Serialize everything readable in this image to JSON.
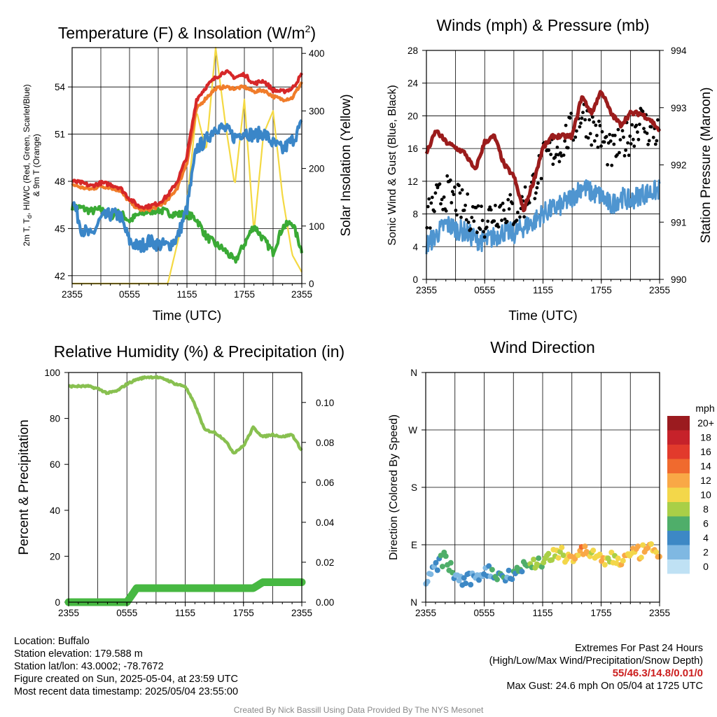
{
  "chart_data": [
    {
      "type": "line",
      "title": "Temperature (F) & Insolation (W/m",
      "title_sup": "2",
      "title_close": ")",
      "xlabel": "Time (UTC)",
      "ylabel": "2m T, T",
      "ylabel_sub": "d",
      "ylabel_rest": ", HI/WC (Red, Green, Scarlet/Blue)",
      "ylabel_line2": "& 9m T (Orange)",
      "ylabel_right": "Solar Insolation (Yellow)",
      "x_ticks": [
        "2355",
        "0555",
        "1155",
        "1755",
        "2355"
      ],
      "ylim": [
        41.5,
        56.5
      ],
      "y_ticks": [
        42,
        45,
        48,
        51,
        54
      ],
      "ylim_right": [
        0,
        410
      ],
      "y_ticks_right": [
        0,
        100,
        200,
        300,
        400
      ],
      "x_hours": [
        0,
        1,
        2,
        3,
        4,
        5,
        6,
        7,
        8,
        9,
        10,
        11,
        12,
        13,
        14,
        15,
        16,
        17,
        18,
        19,
        20,
        21,
        22,
        23,
        24
      ],
      "series": [
        {
          "color": "#d62728",
          "axis": "left",
          "values": [
            48.0,
            47.9,
            47.7,
            47.9,
            47.8,
            47.6,
            46.9,
            46.4,
            46.4,
            46.6,
            47.1,
            48.0,
            49.6,
            53.2,
            54.0,
            54.6,
            55.0,
            54.6,
            54.8,
            54.2,
            54.4,
            53.8,
            53.7,
            53.9,
            54.8
          ]
        },
        {
          "color": "#f07c2a",
          "axis": "left",
          "values": [
            47.8,
            47.6,
            47.5,
            47.7,
            47.6,
            47.4,
            46.7,
            46.2,
            46.2,
            46.4,
            46.8,
            47.6,
            49.2,
            52.6,
            53.3,
            53.9,
            54.0,
            53.9,
            54.0,
            53.7,
            53.8,
            53.4,
            53.2,
            53.3,
            54.3
          ]
        },
        {
          "color": "#3a86c8",
          "axis": "left",
          "values": [
            46.9,
            45.0,
            44.5,
            45.6,
            45.9,
            45.8,
            44.2,
            43.8,
            44.2,
            44.0,
            43.9,
            44.4,
            46.3,
            50.1,
            50.6,
            51.5,
            51.3,
            50.8,
            51.2,
            50.9,
            51.1,
            50.4,
            50.0,
            50.6,
            51.6
          ]
        },
        {
          "color": "#3aaa35",
          "axis": "left",
          "values": [
            46.4,
            46.3,
            46.1,
            46.2,
            45.8,
            46.0,
            45.5,
            45.9,
            46.1,
            46.2,
            46.0,
            45.9,
            45.9,
            45.6,
            44.5,
            44.0,
            43.6,
            42.9,
            44.0,
            45.2,
            44.3,
            43.5,
            45.1,
            45.4,
            43.6
          ]
        },
        {
          "color": "#f4d943",
          "axis": "right",
          "values": [
            0,
            0,
            0,
            0,
            0,
            0,
            0,
            0,
            0,
            0,
            0,
            70,
            140,
            300,
            230,
            410,
            280,
            170,
            320,
            90,
            260,
            300,
            150,
            50,
            20
          ]
        }
      ]
    },
    {
      "type": "scatter",
      "title": "Winds (mph) & Pressure (mb)",
      "xlabel": "Time (UTC)",
      "ylabel": "Sonic Wind & Gust (Blue, Black)",
      "ylabel_right": "Station Pressure (Maroon)",
      "x_ticks": [
        "2355",
        "0555",
        "1155",
        "1755",
        "2355"
      ],
      "ylim": [
        0,
        28
      ],
      "y_ticks": [
        0,
        4,
        8,
        12,
        16,
        20,
        24,
        28
      ],
      "ylim_right": [
        990,
        994
      ],
      "y_ticks_right": [
        990,
        991,
        992,
        993,
        994
      ],
      "x_hours": [
        0,
        1,
        2,
        3,
        4,
        5,
        6,
        7,
        8,
        9,
        10,
        11,
        12,
        13,
        14,
        15,
        16,
        17,
        18,
        19,
        20,
        21,
        22,
        23,
        24
      ],
      "series": [
        {
          "name": "Sonic Wind",
          "color": "#4f95d0",
          "axis": "left",
          "kind": "line",
          "values": [
            4.2,
            5.4,
            6.8,
            6.2,
            5.8,
            5.0,
            4.6,
            5.2,
            5.9,
            5.6,
            6.4,
            7.0,
            8.1,
            8.6,
            9.1,
            10.0,
            11.4,
            10.6,
            10.2,
            9.0,
            10.1,
            9.6,
            10.4,
            10.6,
            11.0
          ]
        },
        {
          "name": "Gust",
          "color": "#000000",
          "axis": "left",
          "kind": "dots",
          "values": [
            7.2,
            9.5,
            10.6,
            9.8,
            8.4,
            7.9,
            7.3,
            8.3,
            8.8,
            8.2,
            9.4,
            11.5,
            14.5,
            15.6,
            16.6,
            18.3,
            20.4,
            18.6,
            17.2,
            15.3,
            16.5,
            17.6,
            19.5,
            18.1,
            17.9
          ]
        },
        {
          "name": "Station Pressure",
          "color": "#9b1c1c",
          "axis": "right",
          "kind": "line",
          "values": [
            992.2,
            992.6,
            992.4,
            992.3,
            992.2,
            991.9,
            992.4,
            992.5,
            992.0,
            991.8,
            991.2,
            991.7,
            992.3,
            992.5,
            992.5,
            992.5,
            993.2,
            992.9,
            993.3,
            992.9,
            992.7,
            992.9,
            992.9,
            992.8,
            992.6
          ]
        }
      ]
    },
    {
      "type": "line",
      "title": "Relative Humidity (%) & Precipitation (in)",
      "ylabel": "Percent & Precipitation",
      "x_ticks": [
        "2355",
        "0555",
        "1155",
        "1755",
        "2355"
      ],
      "ylim": [
        0,
        100
      ],
      "y_ticks": [
        0,
        20,
        40,
        60,
        80,
        100
      ],
      "ylim_right": [
        0,
        0.115
      ],
      "y_ticks_right": [
        "0.00",
        "0.02",
        "0.04",
        "0.06",
        "0.08",
        "0.10"
      ],
      "x_hours": [
        0,
        1,
        2,
        3,
        4,
        5,
        6,
        7,
        8,
        9,
        10,
        11,
        12,
        13,
        14,
        15,
        16,
        17,
        18,
        19,
        20,
        21,
        22,
        23,
        24
      ],
      "series": [
        {
          "name": "Relative Humidity",
          "color": "#88c050",
          "axis": "left",
          "values": [
            94,
            94,
            94,
            93,
            91,
            92,
            95,
            97,
            98,
            98,
            97,
            95,
            94,
            86,
            75,
            74,
            71,
            65,
            68,
            76,
            72,
            73,
            72,
            73,
            66
          ]
        },
        {
          "name": "Precipitation",
          "color": "#47b842",
          "axis": "right",
          "values": [
            0,
            0,
            0,
            0,
            0,
            0,
            0,
            0.007,
            0.007,
            0.007,
            0.007,
            0.007,
            0.007,
            0.007,
            0.007,
            0.007,
            0.007,
            0.007,
            0.007,
            0.007,
            0.01,
            0.01,
            0.01,
            0.01,
            0.01
          ]
        }
      ]
    },
    {
      "type": "scatter",
      "title": "Wind Direction",
      "ylabel": "Direction (Colored By Speed)",
      "x_ticks": [
        "2355",
        "0555",
        "1155",
        "1755",
        "2355"
      ],
      "y_ticks": [
        "N",
        "E",
        "S",
        "W",
        "N"
      ],
      "ylim": [
        0,
        360
      ],
      "x_hours": [
        0,
        1,
        2,
        3,
        4,
        5,
        6,
        7,
        8,
        9,
        10,
        11,
        12,
        13,
        14,
        15,
        16,
        17,
        18,
        19,
        20,
        21,
        22,
        23,
        24
      ],
      "directions": [
        28,
        55,
        70,
        40,
        32,
        37,
        50,
        45,
        40,
        48,
        55,
        60,
        65,
        72,
        75,
        70,
        80,
        78,
        62,
        70,
        65,
        72,
        78,
        82,
        78
      ],
      "speeds": [
        3,
        4,
        8,
        5,
        4,
        5,
        4,
        6,
        5,
        6,
        7,
        8,
        9,
        10,
        11,
        12,
        14,
        11,
        13,
        9,
        11,
        12,
        13,
        12,
        12
      ],
      "legend_title": "mph",
      "legend": [
        {
          "label": "20+",
          "color": "#9b1b1f"
        },
        {
          "label": "18",
          "color": "#c6222a"
        },
        {
          "label": "16",
          "color": "#e23a2c"
        },
        {
          "label": "14",
          "color": "#f06a2e"
        },
        {
          "label": "12",
          "color": "#f9a846"
        },
        {
          "label": "10",
          "color": "#f3d74a"
        },
        {
          "label": "8",
          "color": "#a9cf47"
        },
        {
          "label": "6",
          "color": "#4fae6a"
        },
        {
          "label": "4",
          "color": "#3d88c5"
        },
        {
          "label": "2",
          "color": "#7fb8e2"
        },
        {
          "label": "0",
          "color": "#bfe1f4"
        }
      ]
    }
  ],
  "footer": {
    "location": "Location: Buffalo",
    "elevation": "Station elevation: 179.588 m",
    "latlon": "Station lat/lon: 43.0002; -78.7672",
    "created": "Figure created on Sun, 2025-05-04, at 23:59 UTC",
    "recent": "Most recent data timestamp: 2025/05/04 23:55:00",
    "extremes_title": "Extremes For Past 24 Hours",
    "extremes_sub": "(High/Low/Max Wind/Precipitation/Snow Depth)",
    "extremes_values": "55/46.3/14.8/0.01/0",
    "max_gust": "Max Gust: 24.6 mph On 05/04 at 1725 UTC",
    "credit": "Created By Nick Bassill Using Data Provided By The NYS Mesonet"
  }
}
